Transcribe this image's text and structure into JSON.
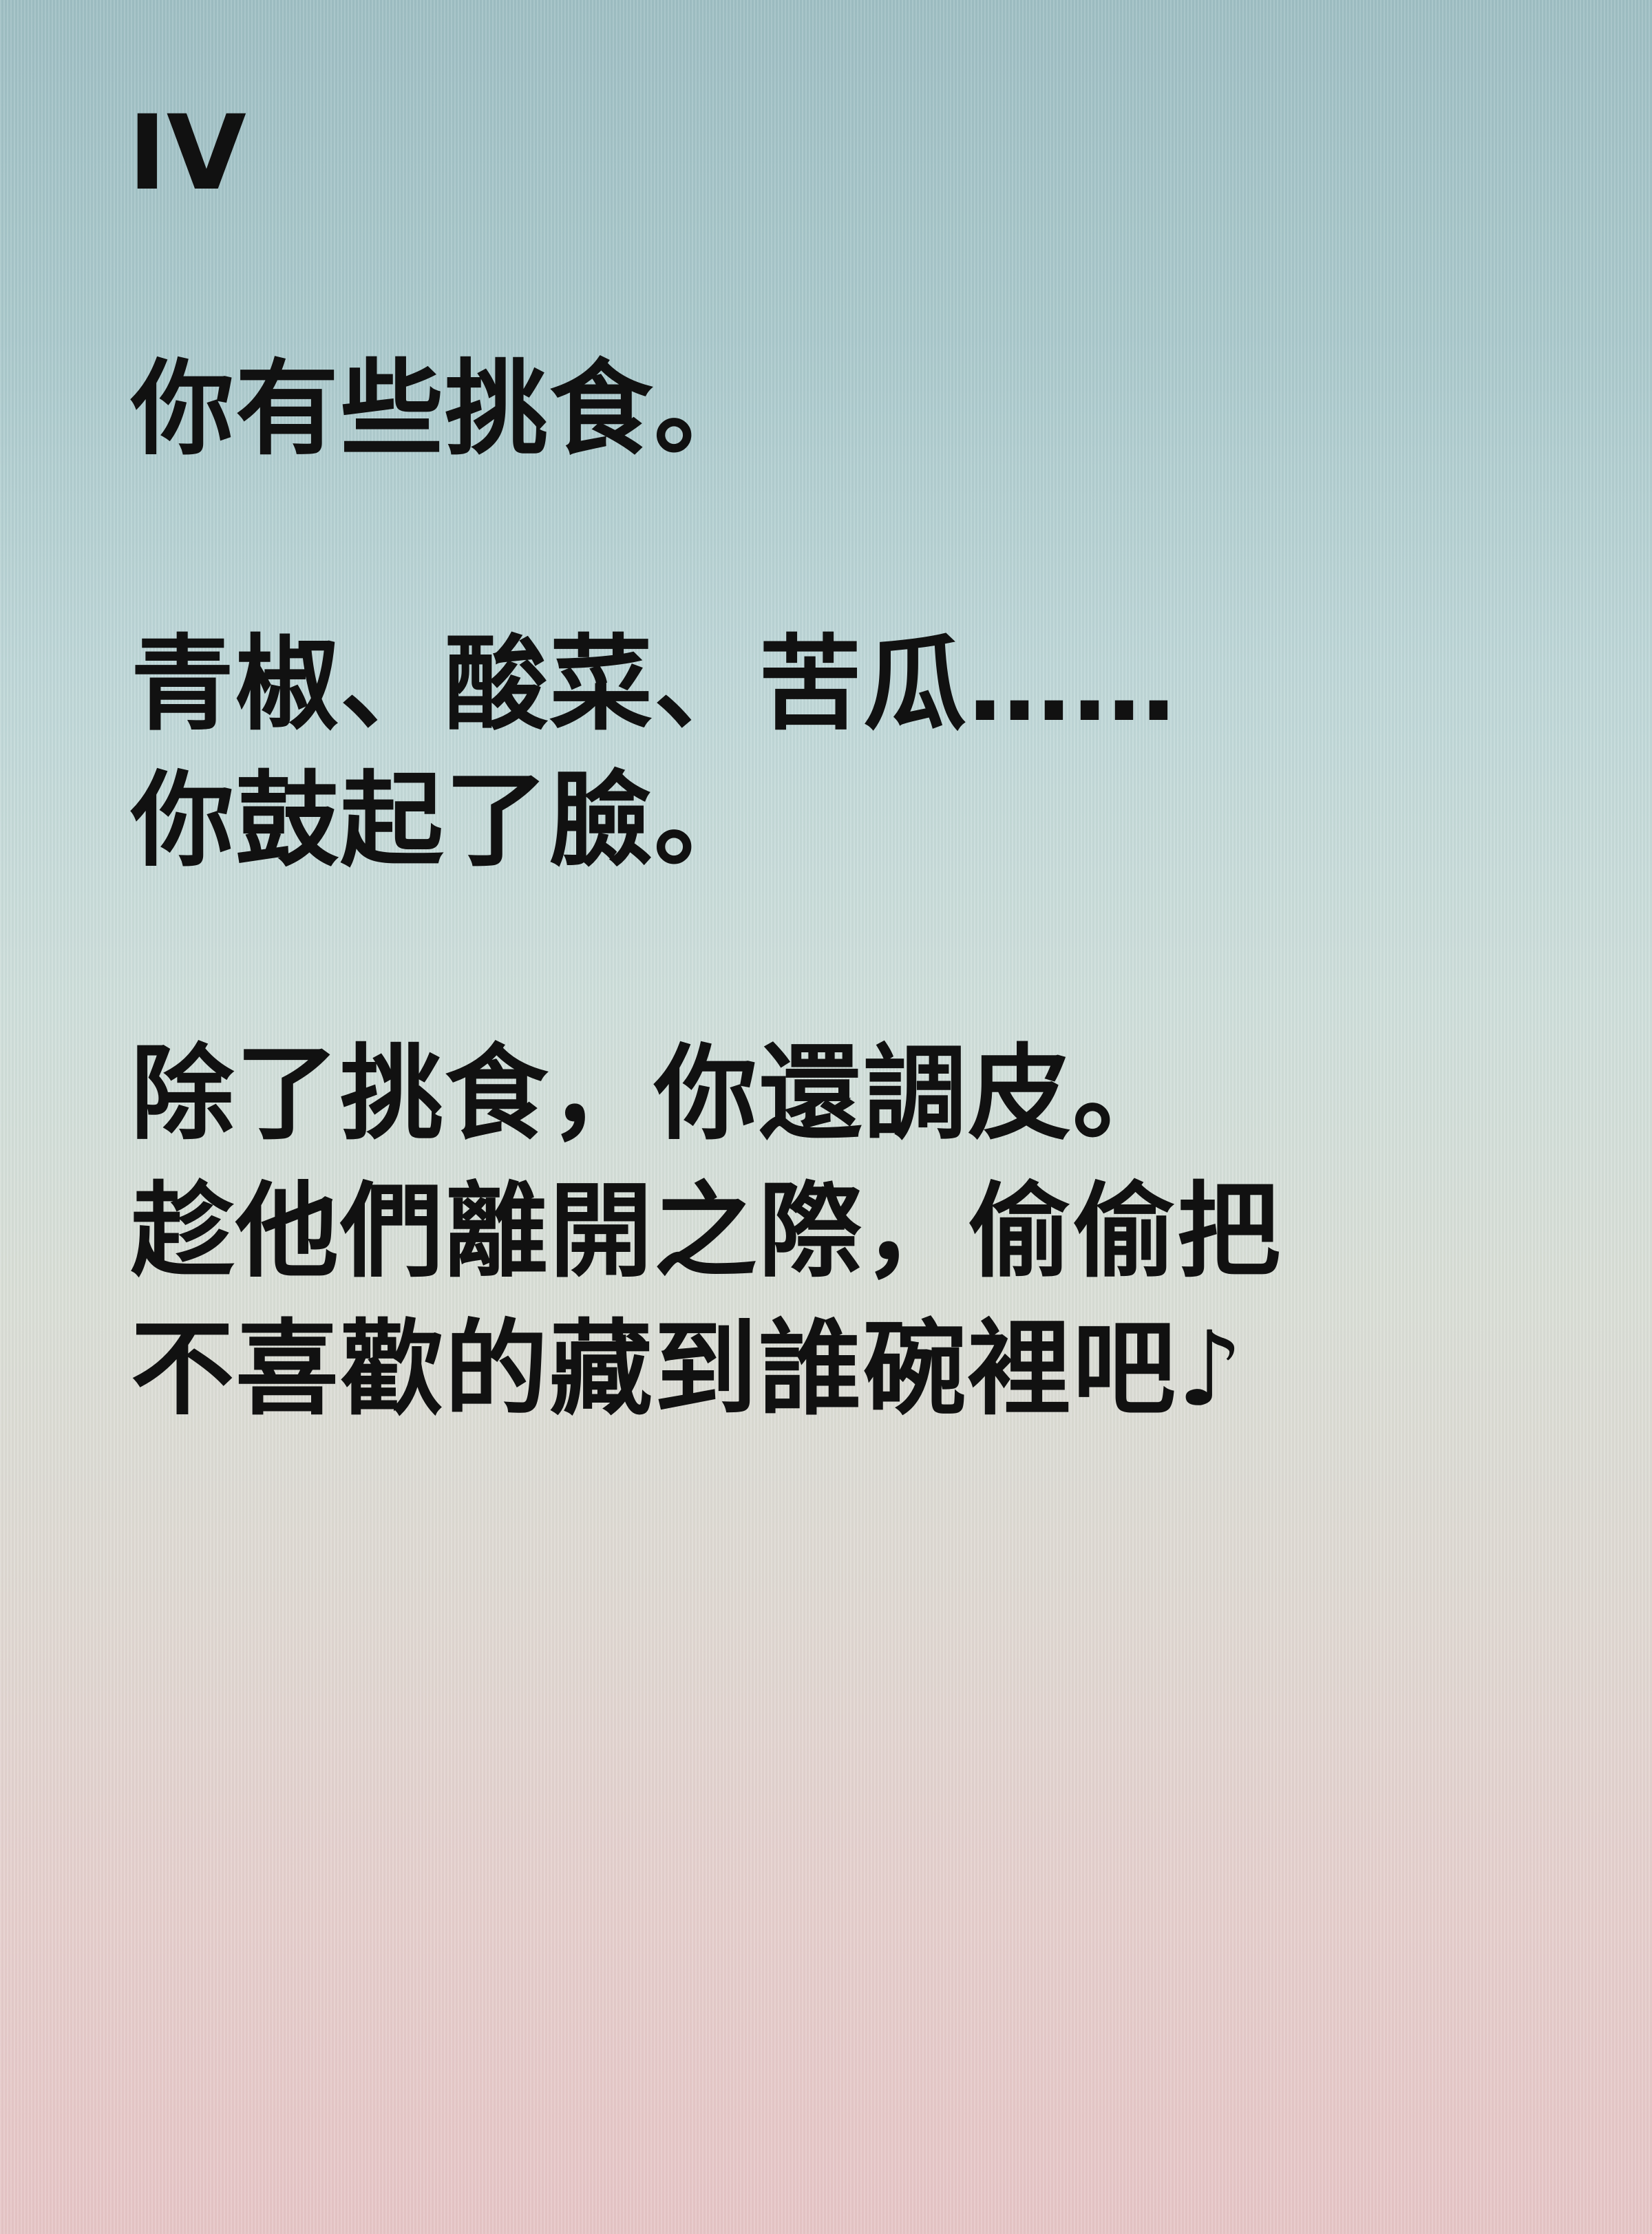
{
  "chapter": "IV",
  "lines": [
    "你有些挑食。",
    "青椒、酸菜、苦瓜……",
    "你鼓起了臉。",
    "除了挑食，你還調皮。",
    "趁他們離開之際，偷偷把",
    "不喜歡的藏到誰碗裡吧♪"
  ],
  "colors": {
    "text": "#111111",
    "background_top": "#9fbfc4",
    "background_bottom": "#e7c6c7"
  }
}
